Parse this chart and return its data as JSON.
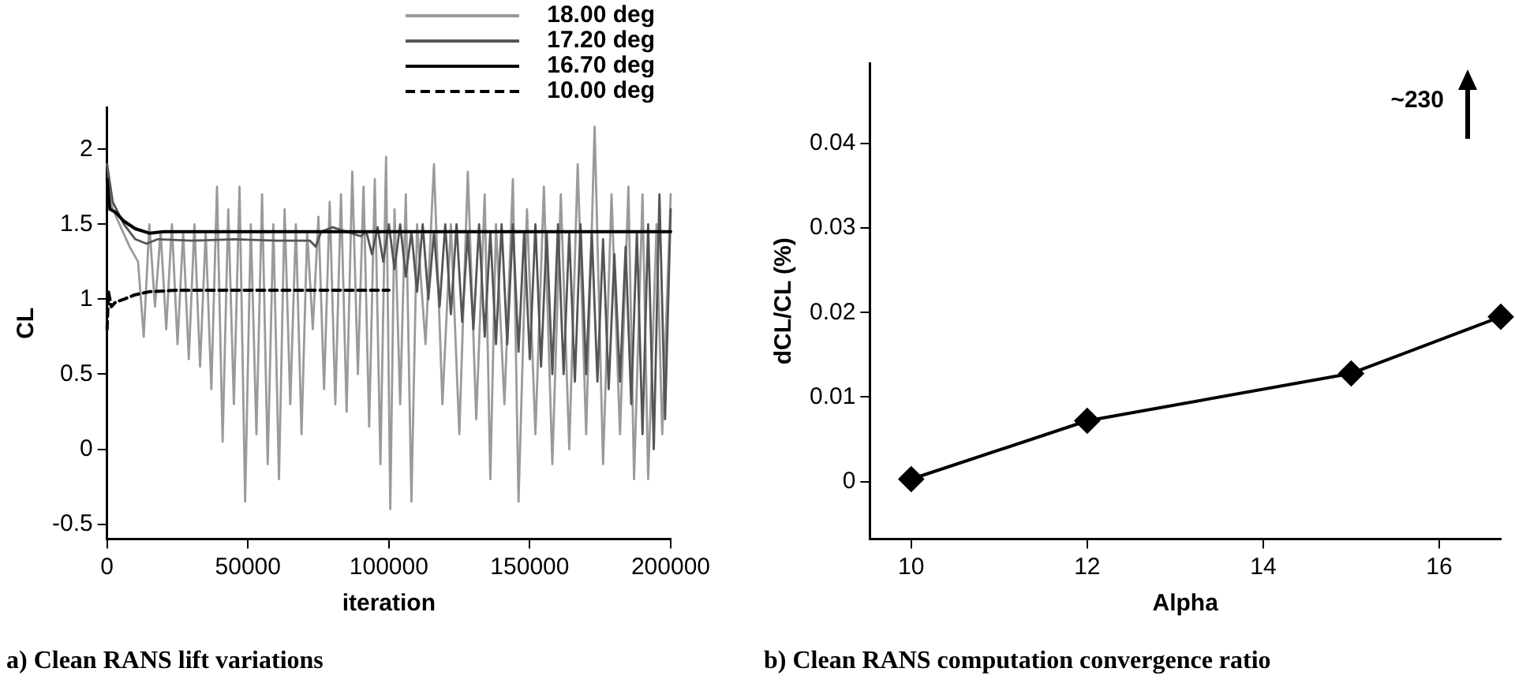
{
  "chart_data": [
    {
      "type": "line",
      "title": "a) Clean RANS lift variations",
      "xlabel": "iteration",
      "ylabel": "CL",
      "xlim": [
        0,
        200000
      ],
      "xticks": [
        0,
        50000,
        100000,
        150000,
        200000
      ],
      "ylim": [
        -0.6,
        2.28
      ],
      "yticks": [
        -0.5,
        0,
        0.5,
        1,
        1.5,
        2
      ],
      "grid": false,
      "legend": "top right",
      "marker": "none",
      "series": [
        {
          "name": "18.00 deg",
          "color": "#9a9a9a",
          "line_style": "solid",
          "x": [
            0,
            2000,
            8000,
            11000,
            13000,
            15000,
            17000,
            19000,
            21000,
            23000,
            25000,
            27000,
            29000,
            31000,
            33000,
            35000,
            37000,
            39000,
            41000,
            43000,
            45000,
            47000,
            49000,
            51000,
            53000,
            55000,
            57000,
            59000,
            61000,
            63000,
            65000,
            67000,
            69000,
            71000,
            73000,
            75000,
            77000,
            79000,
            81000,
            83000,
            85000,
            87000,
            89000,
            91000,
            93000,
            95000,
            97000,
            99000,
            100500,
            102000,
            104000,
            106000,
            108000,
            110000,
            113000,
            116000,
            119000,
            122000,
            125000,
            128000,
            131000,
            134000,
            136000,
            138000,
            141000,
            144000,
            146000,
            149000,
            152000,
            155000,
            158000,
            161000,
            164000,
            167000,
            170000,
            173000,
            176000,
            179000,
            182000,
            185000,
            187000,
            190000,
            192000,
            195000,
            197000,
            200000
          ],
          "values": [
            1.9,
            1.6,
            1.35,
            1.25,
            0.75,
            1.5,
            0.95,
            1.45,
            0.8,
            1.5,
            0.7,
            1.45,
            0.6,
            1.5,
            0.55,
            1.45,
            0.4,
            1.75,
            0.05,
            1.6,
            0.3,
            1.75,
            -0.35,
            1.5,
            0.1,
            1.7,
            -0.1,
            1.5,
            -0.2,
            1.6,
            0.3,
            1.5,
            0.1,
            1.45,
            0.8,
            1.55,
            0.4,
            1.65,
            0.3,
            1.7,
            0.25,
            1.85,
            0.5,
            1.75,
            0.15,
            1.8,
            -0.1,
            1.95,
            -0.4,
            1.6,
            0.3,
            1.7,
            -0.35,
            1.5,
            0.7,
            1.9,
            0.3,
            1.5,
            0.1,
            1.85,
            0.2,
            1.7,
            -0.2,
            1.5,
            0.3,
            1.8,
            -0.35,
            1.6,
            0.1,
            1.75,
            -0.1,
            1.7,
            0.0,
            1.9,
            0.1,
            2.15,
            -0.1,
            1.7,
            0.1,
            1.75,
            -0.2,
            1.7,
            -0.2,
            1.5,
            0.1,
            1.7
          ]
        },
        {
          "name": "17.20 deg",
          "color": "#555555",
          "line_style": "solid",
          "x": [
            0,
            2000,
            6000,
            10000,
            14000,
            18000,
            30000,
            45000,
            60000,
            72000,
            74000,
            76000,
            80000,
            85000,
            90000,
            92000,
            94000,
            96000,
            98000,
            100000,
            102000,
            104000,
            106000,
            108000,
            110000,
            112000,
            114000,
            116000,
            118000,
            120000,
            122000,
            124000,
            126000,
            128000,
            130000,
            132000,
            134000,
            136000,
            138000,
            140000,
            142000,
            144000,
            146000,
            148000,
            150000,
            152000,
            154000,
            156000,
            158000,
            160000,
            162000,
            164000,
            166000,
            168000,
            170000,
            172000,
            174000,
            176000,
            178000,
            180000,
            182000,
            184000,
            186000,
            188000,
            190000,
            192000,
            194000,
            196000,
            198000,
            200000
          ],
          "values": [
            1.9,
            1.65,
            1.5,
            1.4,
            1.37,
            1.4,
            1.39,
            1.4,
            1.39,
            1.39,
            1.35,
            1.45,
            1.48,
            1.45,
            1.42,
            1.45,
            1.3,
            1.48,
            1.25,
            1.5,
            1.2,
            1.5,
            1.15,
            1.45,
            1.05,
            1.5,
            1.0,
            1.45,
            0.95,
            1.5,
            0.9,
            1.5,
            0.85,
            1.45,
            0.8,
            1.5,
            0.75,
            1.45,
            0.7,
            1.5,
            0.7,
            1.5,
            0.65,
            1.45,
            0.6,
            1.5,
            0.55,
            1.45,
            0.5,
            1.5,
            0.5,
            1.45,
            0.45,
            1.5,
            0.5,
            1.45,
            0.45,
            1.4,
            0.4,
            1.3,
            0.45,
            1.35,
            0.3,
            1.45,
            0.1,
            1.5,
            0.0,
            1.7,
            0.2,
            1.6
          ]
        },
        {
          "name": "16.70 deg",
          "color": "#000000",
          "line_style": "solid",
          "x": [
            0,
            1000,
            3000,
            6000,
            10000,
            15000,
            20000,
            200000
          ],
          "values": [
            1.8,
            1.6,
            1.58,
            1.52,
            1.47,
            1.44,
            1.45,
            1.45
          ]
        },
        {
          "name": "10.00 deg",
          "color": "#000000",
          "line_style": "dashed",
          "x": [
            0,
            500,
            1500,
            3000,
            6000,
            10000,
            15000,
            25000,
            100000
          ],
          "values": [
            0.8,
            1.05,
            0.95,
            0.98,
            1.0,
            1.03,
            1.05,
            1.06,
            1.06
          ]
        }
      ]
    },
    {
      "type": "line",
      "title": "b) Clean RANS computation convergence ratio",
      "xlabel": "Alpha",
      "ylabel": "dCL/CL (%)",
      "xlim": [
        9.53,
        16.7
      ],
      "xticks": [
        10,
        12,
        14,
        16
      ],
      "ylim": [
        -0.0068,
        0.0495
      ],
      "yticks": [
        0,
        0.01,
        0.02,
        0.03,
        0.04
      ],
      "grid": false,
      "marker": "diamond",
      "x": [
        10,
        12,
        15,
        16.7
      ],
      "series": [
        {
          "color": "#000000",
          "line_style": "solid",
          "values": [
            0.0003,
            0.0072,
            0.0128,
            0.0195
          ]
        }
      ],
      "annotations": [
        "~230"
      ]
    }
  ]
}
